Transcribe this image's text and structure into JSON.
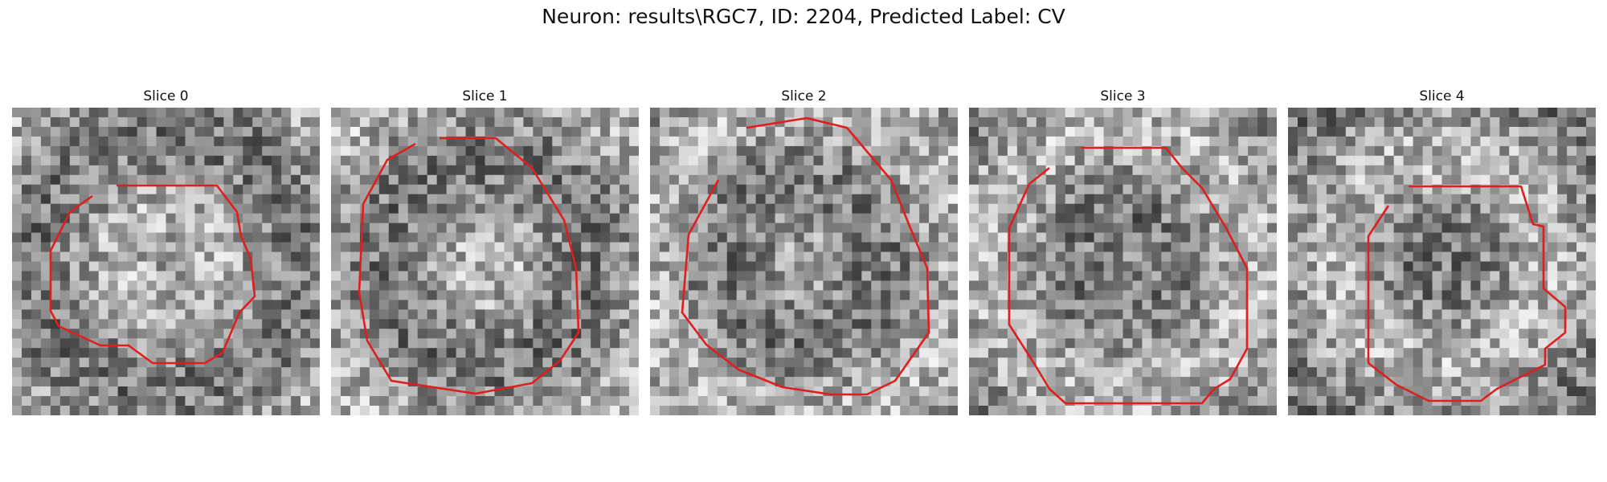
{
  "figure": {
    "title": "Neuron: results\\RGC7, ID: 2204, Predicted Label: CV",
    "contour_color": "#e01e1e"
  },
  "panels": [
    {
      "title": "Slice 0",
      "seed": 11
    },
    {
      "title": "Slice 1",
      "seed": 23
    },
    {
      "title": "Slice 2",
      "seed": 37
    },
    {
      "title": "Slice 3",
      "seed": 51
    },
    {
      "title": "Slice 4",
      "seed": 67
    }
  ]
}
